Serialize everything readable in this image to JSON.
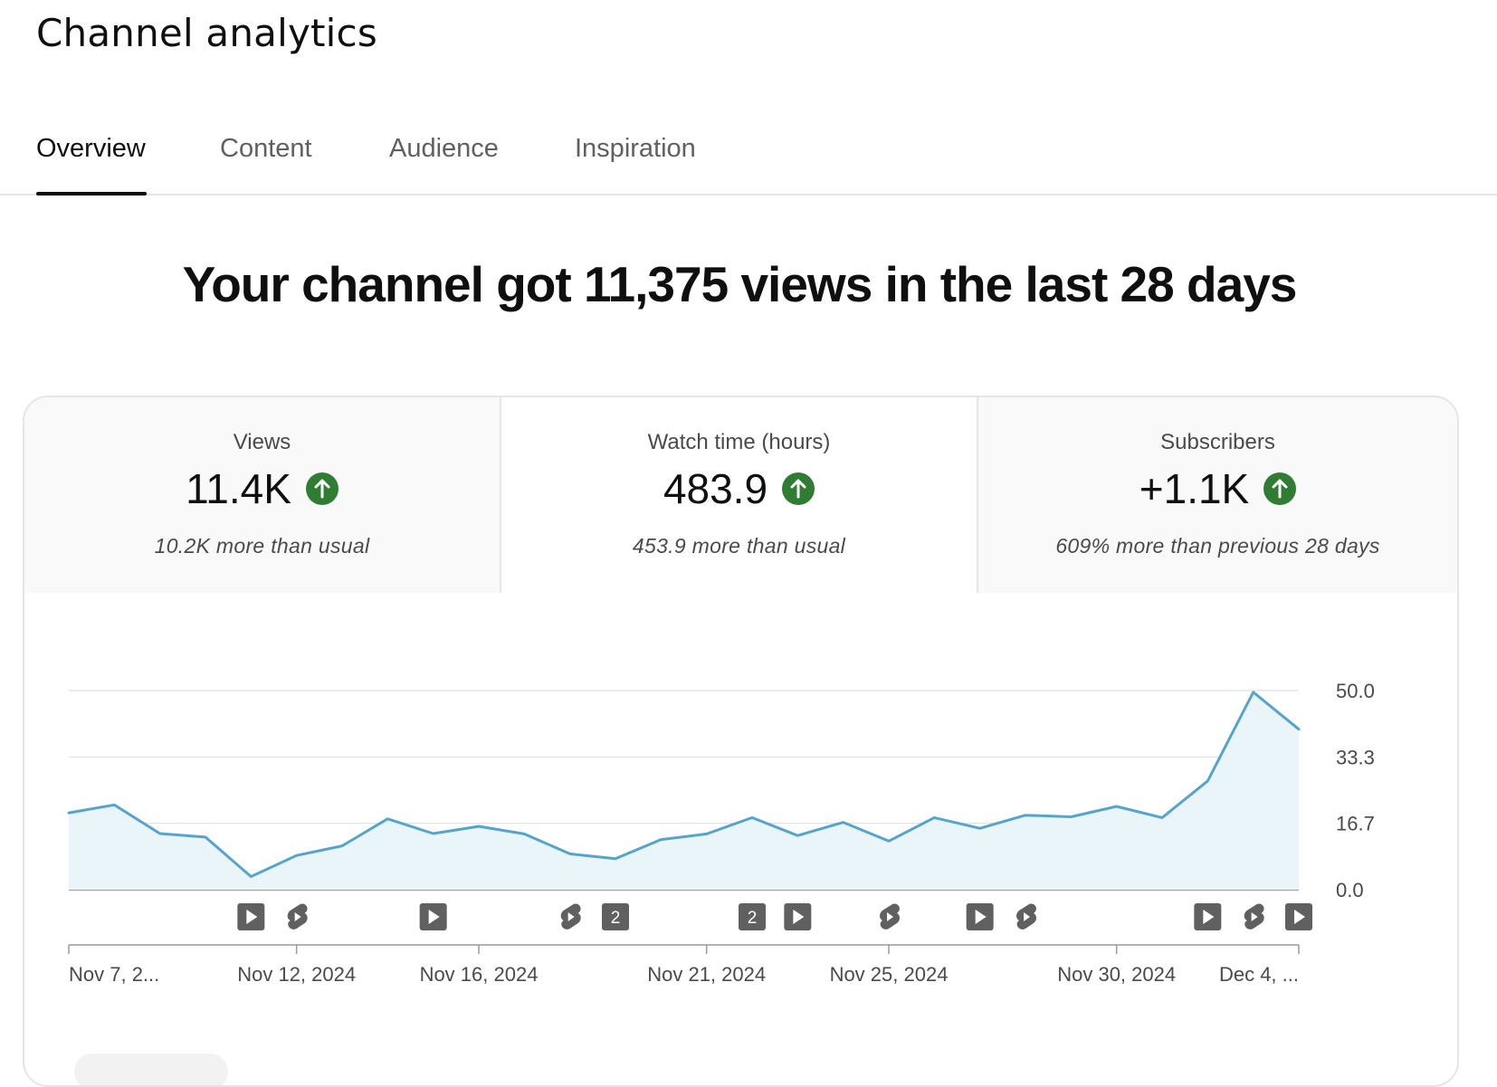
{
  "header": {
    "title": "Channel analytics"
  },
  "tabs": [
    {
      "label": "Overview",
      "active": true
    },
    {
      "label": "Content",
      "active": false
    },
    {
      "label": "Audience",
      "active": false
    },
    {
      "label": "Inspiration",
      "active": false
    }
  ],
  "headline": "Your channel got 11,375 views in the last 28 days",
  "metrics": [
    {
      "label": "Views",
      "value": "11.4K",
      "trend_icon": "arrow-up-icon",
      "note": "10.2K more than usual",
      "selected": false
    },
    {
      "label": "Watch time (hours)",
      "value": "483.9",
      "trend_icon": "arrow-up-icon",
      "note": "453.9 more than usual",
      "selected": true
    },
    {
      "label": "Subscribers",
      "value": "+1.1K",
      "trend_icon": "arrow-up-icon",
      "note": "609% more than previous 28 days",
      "selected": false
    }
  ],
  "colors": {
    "line": "#56a4cc",
    "area": "#e9f5f8",
    "up": "#2e7d32",
    "marker": "#606060"
  },
  "chart_data": {
    "type": "area",
    "ylim": [
      0,
      50
    ],
    "y_ticks": [
      "0.0",
      "16.7",
      "33.3",
      "50.0"
    ],
    "x": [
      "Nov 7, 2024",
      "Nov 8, 2024",
      "Nov 9, 2024",
      "Nov 10, 2024",
      "Nov 11, 2024",
      "Nov 12, 2024",
      "Nov 13, 2024",
      "Nov 14, 2024",
      "Nov 15, 2024",
      "Nov 16, 2024",
      "Nov 17, 2024",
      "Nov 18, 2024",
      "Nov 19, 2024",
      "Nov 20, 2024",
      "Nov 21, 2024",
      "Nov 22, 2024",
      "Nov 23, 2024",
      "Nov 24, 2024",
      "Nov 25, 2024",
      "Nov 26, 2024",
      "Nov 27, 2024",
      "Nov 28, 2024",
      "Nov 29, 2024",
      "Nov 30, 2024",
      "Dec 1, 2024",
      "Dec 2, 2024",
      "Dec 3, 2024",
      "Dec 4, 2024"
    ],
    "series": [
      {
        "values": [
          19.3,
          21.3,
          14.1,
          13.2,
          3.3,
          8.6,
          11.0,
          17.8,
          14.1,
          15.9,
          14.0,
          9.0,
          7.8,
          12.6,
          14.0,
          18.1,
          13.6,
          16.9,
          12.2,
          18.1,
          15.4,
          18.7,
          18.3,
          20.9,
          18.1,
          27.3,
          49.6,
          40.3
        ]
      }
    ],
    "x_tick_labels": [
      {
        "i": 0,
        "label": "Nov 7, 2..."
      },
      {
        "i": 5,
        "label": "Nov 12, 2024"
      },
      {
        "i": 9,
        "label": "Nov 16, 2024"
      },
      {
        "i": 14,
        "label": "Nov 21, 2024"
      },
      {
        "i": 18,
        "label": "Nov 25, 2024"
      },
      {
        "i": 23,
        "label": "Nov 30, 2024"
      },
      {
        "i": 27,
        "label": "Dec 4, ..."
      }
    ],
    "markers": [
      {
        "i": 4,
        "kind": "video"
      },
      {
        "i": 5,
        "kind": "short"
      },
      {
        "i": 8,
        "kind": "video"
      },
      {
        "i": 11,
        "kind": "short"
      },
      {
        "i": 12,
        "kind": "count",
        "label": "2"
      },
      {
        "i": 15,
        "kind": "count",
        "label": "2"
      },
      {
        "i": 16,
        "kind": "video"
      },
      {
        "i": 18,
        "kind": "short"
      },
      {
        "i": 20,
        "kind": "video"
      },
      {
        "i": 21,
        "kind": "short"
      },
      {
        "i": 25,
        "kind": "video"
      },
      {
        "i": 26,
        "kind": "short"
      },
      {
        "i": 27,
        "kind": "video"
      }
    ]
  }
}
